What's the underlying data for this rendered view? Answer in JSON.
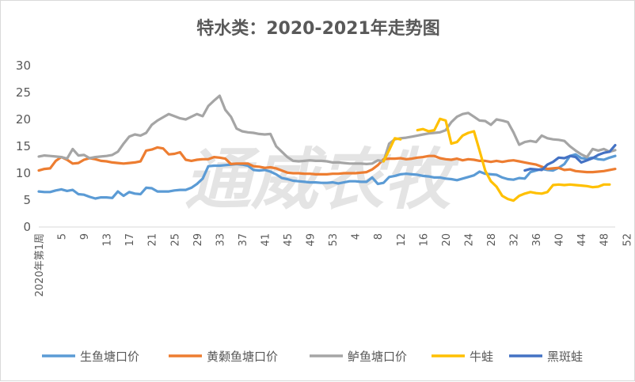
{
  "watermark": "通威农牧",
  "chart_data": {
    "type": "line",
    "title": "特水类：2020-2021年走势图",
    "ylim": [
      0,
      30
    ],
    "yticks": [
      0,
      5,
      10,
      15,
      20,
      25,
      30
    ],
    "grid": false,
    "legend_position": "bottom",
    "x_first_label": "2020年第1周",
    "xtick_labels": [
      "5",
      "9",
      "13",
      "17",
      "21",
      "25",
      "29",
      "33",
      "37",
      "41",
      "45",
      "49",
      "53",
      "4",
      "8",
      "12",
      "16",
      "20",
      "24",
      "28",
      "32",
      "36",
      "40",
      "44",
      "48",
      "52"
    ],
    "series": [
      {
        "name": "生鱼塘口价",
        "color": "#5B9BD5",
        "start": 0,
        "values": [
          6.6,
          6.5,
          6.5,
          6.8,
          7.0,
          6.7,
          6.9,
          6.1,
          6.0,
          5.6,
          5.3,
          5.5,
          5.5,
          5.4,
          6.6,
          5.8,
          6.5,
          6.2,
          6.1,
          7.3,
          7.2,
          6.6,
          6.6,
          6.6,
          6.8,
          6.9,
          6.9,
          7.3,
          8.0,
          9.0,
          11.3,
          11.4,
          11.4,
          11.5,
          11.6,
          11.7,
          11.6,
          11.4,
          10.6,
          10.5,
          10.6,
          10.3,
          9.8,
          9.1,
          8.9,
          8.6,
          8.5,
          8.4,
          8.3,
          8.3,
          8.2,
          8.2,
          8.3,
          8.1,
          8.3,
          8.5,
          8.5,
          8.4,
          8.4,
          9.2,
          8.0,
          8.2,
          9.3,
          9.5,
          9.8,
          9.9,
          9.8,
          9.7,
          9.5,
          9.4,
          9.2,
          9.2,
          9.0,
          8.9,
          8.7,
          9.0,
          9.3,
          9.6,
          10.3,
          9.9,
          9.8,
          9.7,
          9.2,
          8.9,
          8.8,
          9.1,
          9.0,
          10.2,
          10.5,
          10.8,
          10.6,
          10.5,
          11.0,
          11.7,
          13.2,
          13.5,
          12.8,
          12.7,
          12.9,
          12.6,
          12.5,
          12.9,
          13.2
        ]
      },
      {
        "name": "黄颡鱼塘口价",
        "color": "#ED7D31",
        "start": 0,
        "values": [
          10.5,
          10.8,
          10.9,
          12.3,
          13.0,
          12.5,
          11.8,
          11.9,
          12.5,
          12.8,
          12.6,
          12.3,
          12.2,
          12.0,
          11.9,
          11.8,
          11.9,
          12.0,
          12.2,
          14.2,
          14.4,
          14.8,
          14.6,
          13.5,
          13.6,
          13.9,
          12.5,
          12.3,
          12.5,
          12.6,
          12.6,
          13.0,
          12.9,
          12.7,
          11.7,
          11.8,
          11.8,
          11.8,
          11.3,
          11.2,
          11.0,
          11.1,
          10.9,
          10.5,
          10.1,
          10.0,
          10.0,
          9.9,
          9.9,
          9.8,
          9.8,
          9.8,
          9.9,
          9.9,
          10.0,
          10.0,
          10.0,
          10.1,
          10.2,
          10.7,
          11.5,
          12.6,
          12.7,
          12.7,
          12.8,
          12.6,
          12.7,
          12.9,
          13.0,
          13.2,
          13.2,
          12.8,
          12.6,
          12.5,
          12.7,
          12.4,
          12.6,
          12.5,
          12.3,
          12.3,
          12.1,
          12.3,
          12.1,
          12.3,
          12.4,
          12.2,
          12.0,
          11.8,
          11.6,
          11.2,
          10.8,
          10.9,
          11.0,
          10.6,
          10.7,
          10.4,
          10.3,
          10.2,
          10.2,
          10.3,
          10.4,
          10.6,
          10.8
        ]
      },
      {
        "name": "鲈鱼塘口价",
        "color": "#A5A5A5",
        "start": 0,
        "values": [
          13.1,
          13.3,
          13.2,
          13.1,
          13.0,
          12.7,
          14.5,
          13.3,
          13.4,
          12.8,
          13.0,
          13.1,
          13.2,
          13.4,
          14.0,
          15.5,
          16.8,
          17.2,
          17.0,
          17.5,
          19.0,
          19.8,
          20.4,
          21.0,
          20.6,
          20.2,
          20.0,
          20.5,
          21.0,
          20.6,
          22.5,
          23.5,
          24.4,
          21.8,
          20.5,
          18.3,
          17.8,
          17.6,
          17.5,
          17.3,
          17.2,
          17.3,
          15.0,
          14.0,
          13.0,
          12.3,
          12.2,
          12.3,
          12.4,
          12.3,
          12.3,
          12.2,
          12.0,
          12.0,
          11.9,
          11.8,
          11.8,
          11.8,
          11.7,
          11.8,
          12.4,
          12.2,
          15.5,
          16.3,
          16.5,
          16.6,
          16.8,
          17.0,
          17.2,
          17.4,
          17.5,
          17.6,
          18.0,
          19.5,
          20.5,
          21.0,
          21.2,
          20.5,
          19.8,
          19.7,
          19.0,
          20.0,
          19.8,
          19.5,
          17.6,
          15.3,
          15.8,
          16.0,
          15.8,
          17.0,
          16.5,
          16.3,
          16.2,
          16.0,
          15.0,
          14.2,
          13.5,
          13.0,
          14.5,
          14.2,
          14.5,
          14.0,
          14.3
        ]
      },
      {
        "name": "牛蛙",
        "color": "#FFC000",
        "start": 61,
        "values": [
          12.2,
          14.3,
          16.5,
          16.3,
          null,
          null,
          18.0,
          18.2,
          17.8,
          18.0,
          20.1,
          19.8,
          15.5,
          15.8,
          17.0,
          17.5,
          17.8,
          14.2,
          10.5,
          8.5,
          7.5,
          5.8,
          5.2,
          4.9,
          5.8,
          6.2,
          6.5,
          6.3,
          6.2,
          6.5,
          7.8,
          7.9,
          7.8,
          7.9,
          7.8,
          7.7,
          7.6,
          7.4,
          7.5,
          7.9,
          7.9
        ]
      },
      {
        "name": "黑斑蛙",
        "color": "#4472C4",
        "start": 86,
        "values": [
          10.5,
          10.8,
          10.7,
          10.6,
          11.6,
          12.1,
          12.9,
          12.8,
          13.2,
          13.0,
          12.0,
          12.4,
          12.8,
          13.4,
          13.8,
          14.0,
          15.2
        ]
      }
    ]
  }
}
